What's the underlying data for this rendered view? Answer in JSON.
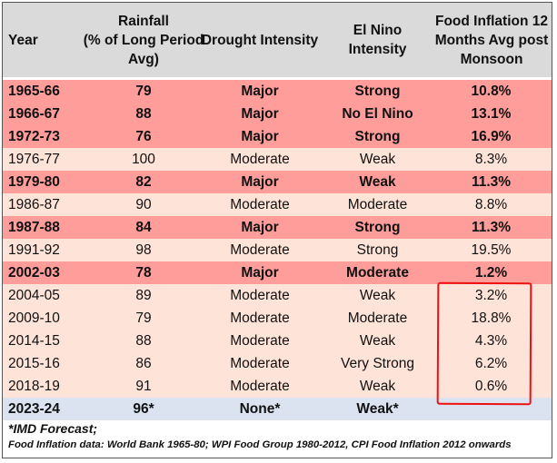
{
  "colors": {
    "major": "#ff9d9b",
    "moderate": "#fde3d8",
    "forecast": "#dbe3f1",
    "header": "#dadada",
    "highlight_box": "#e11111"
  },
  "table": {
    "headers": {
      "year": "Year",
      "rainfall": "Rainfall\n(% of Long Period\nAvg)",
      "drought": "Drought Intensity",
      "nino": "El Nino\nIntensity",
      "food": "Food Inflation 12\nMonths Avg post\nMonsoon"
    },
    "rows": [
      {
        "year": "1965-66",
        "rainfall": "79",
        "drought": "Major",
        "nino": "Strong",
        "food": "10.8%",
        "kind": "major"
      },
      {
        "year": "1966-67",
        "rainfall": "88",
        "drought": "Major",
        "nino": "No El Nino",
        "food": "13.1%",
        "kind": "major"
      },
      {
        "year": "1972-73",
        "rainfall": "76",
        "drought": "Major",
        "nino": "Strong",
        "food": "16.9%",
        "kind": "major"
      },
      {
        "year": "1976-77",
        "rainfall": "100",
        "drought": "Moderate",
        "nino": "Weak",
        "food": "8.3%",
        "kind": "moderate"
      },
      {
        "year": "1979-80",
        "rainfall": "82",
        "drought": "Major",
        "nino": "Weak",
        "food": "11.3%",
        "kind": "major"
      },
      {
        "year": "1986-87",
        "rainfall": "90",
        "drought": "Moderate",
        "nino": "Moderate",
        "food": "8.8%",
        "kind": "moderate"
      },
      {
        "year": "1987-88",
        "rainfall": "84",
        "drought": "Major",
        "nino": "Strong",
        "food": "11.3%",
        "kind": "major"
      },
      {
        "year": "1991-92",
        "rainfall": "98",
        "drought": "Moderate",
        "nino": "Strong",
        "food": "19.5%",
        "kind": "moderate"
      },
      {
        "year": "2002-03",
        "rainfall": "78",
        "drought": "Major",
        "nino": "Moderate",
        "food": "1.2%",
        "kind": "major"
      },
      {
        "year": "2004-05",
        "rainfall": "89",
        "drought": "Moderate",
        "nino": "Weak",
        "food": "3.2%",
        "kind": "moderate"
      },
      {
        "year": "2009-10",
        "rainfall": "79",
        "drought": "Moderate",
        "nino": "Moderate",
        "food": "18.8%",
        "kind": "moderate"
      },
      {
        "year": "2014-15",
        "rainfall": "88",
        "drought": "Moderate",
        "nino": "Weak",
        "food": "4.3%",
        "kind": "moderate"
      },
      {
        "year": "2015-16",
        "rainfall": "86",
        "drought": "Moderate",
        "nino": "Very Strong",
        "food": "6.2%",
        "kind": "moderate"
      },
      {
        "year": "2018-19",
        "rainfall": "91",
        "drought": "Moderate",
        "nino": "Weak",
        "food": "0.6%",
        "kind": "moderate"
      },
      {
        "year": "2023-24",
        "rainfall": "96*",
        "drought": "None*",
        "nino": "Weak*",
        "food": "",
        "kind": "forecast"
      }
    ]
  },
  "notes": {
    "forecast": "*IMD Forecast;",
    "source": "Food Inflation data: World Bank 1965-80; WPI Food Group 1980-2012, CPI Food Inflation 2012 onwards"
  }
}
